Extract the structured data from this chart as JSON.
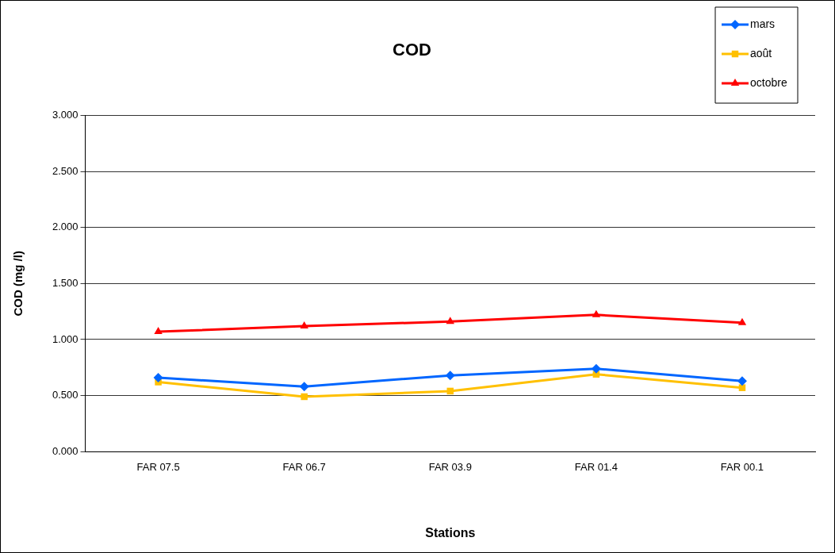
{
  "chart_data": {
    "type": "line",
    "title": "COD",
    "xlabel": "Stations",
    "ylabel": "COD (mg /l)",
    "categories": [
      "FAR 07.5",
      "FAR 06.7",
      "FAR 03.9",
      "FAR 01.4",
      "FAR 00.1"
    ],
    "series": [
      {
        "name": "mars",
        "color": "#0066ff",
        "marker": "diamond",
        "values": [
          0.66,
          0.58,
          0.68,
          0.74,
          0.63
        ]
      },
      {
        "name": "août",
        "color": "#ffc000",
        "marker": "square",
        "values": [
          0.62,
          0.49,
          0.54,
          0.69,
          0.57
        ]
      },
      {
        "name": "octobre",
        "color": "#ff0000",
        "marker": "triangle",
        "values": [
          1.07,
          1.12,
          1.16,
          1.22,
          1.15
        ]
      }
    ],
    "ylim": [
      0,
      3
    ],
    "yticks": [
      {
        "value": 0,
        "label": "0.000"
      },
      {
        "value": 0.5,
        "label": "0.500"
      },
      {
        "value": 1,
        "label": "1.000"
      },
      {
        "value": 1.5,
        "label": "1.500"
      },
      {
        "value": 2,
        "label": "2.000"
      },
      {
        "value": 2.5,
        "label": "2.500"
      },
      {
        "value": 3,
        "label": "3.000"
      }
    ],
    "grid": "y",
    "legend": "top right",
    "line_style": "solid"
  }
}
